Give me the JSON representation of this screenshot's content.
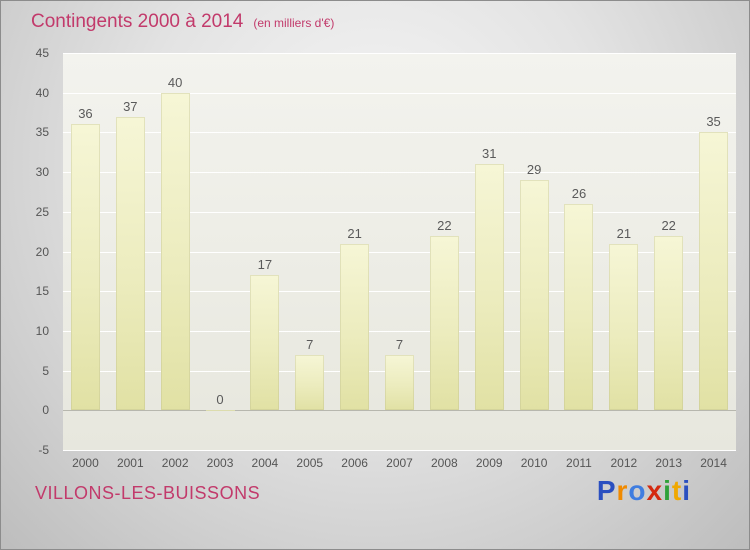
{
  "header": {
    "title": "Contingents 2000 à 2014",
    "subtitle": "(en milliers d'€)"
  },
  "footer": {
    "place_name": "VILLONS-LES-BUISSONS",
    "logo_letters": [
      {
        "ch": "P",
        "color": "#2a4fc0"
      },
      {
        "ch": "r",
        "color": "#f08a00"
      },
      {
        "ch": "o",
        "color": "#3f7de0"
      },
      {
        "ch": "x",
        "color": "#d42a10"
      },
      {
        "ch": "i",
        "color": "#2fA13a"
      },
      {
        "ch": "t",
        "color": "#f0a800"
      },
      {
        "ch": "i",
        "color": "#2a4fc0"
      }
    ]
  },
  "colors": {
    "title_text": "#c23a6b",
    "axis_text": "#555555",
    "bar_fill_top": "#f6f6d6",
    "bar_fill_bottom": "#e1e1a4",
    "gridline": "#ffffff"
  },
  "chart_data": {
    "type": "bar",
    "title": "Contingents 2000 à 2014",
    "subtitle": "(en milliers d'€)",
    "categories": [
      "2000",
      "2001",
      "2002",
      "2003",
      "2004",
      "2005",
      "2006",
      "2007",
      "2008",
      "2009",
      "2010",
      "2011",
      "2012",
      "2013",
      "2014"
    ],
    "values": [
      36,
      37,
      40,
      0,
      17,
      7,
      21,
      7,
      22,
      31,
      29,
      26,
      21,
      22,
      35
    ],
    "xlabel": "",
    "ylabel": "",
    "ylim": [
      -5,
      45
    ],
    "ytick_step": 5,
    "grid": true,
    "legend": "none",
    "value_labels": true
  }
}
